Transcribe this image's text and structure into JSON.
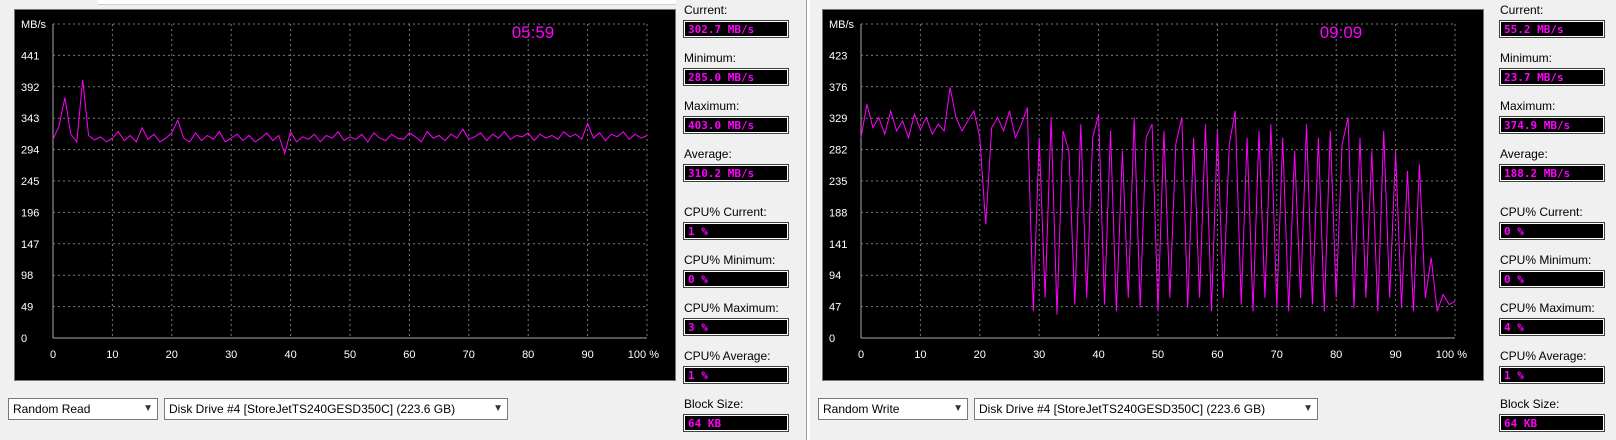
{
  "panels": [
    {
      "chart": {
        "y_unit": "MB/s",
        "y_ticks": [
          "441",
          "392",
          "343",
          "294",
          "245",
          "196",
          "147",
          "98",
          "49",
          "0"
        ],
        "x_ticks": [
          "0",
          "10",
          "20",
          "30",
          "40",
          "50",
          "60",
          "70",
          "80",
          "90",
          "100 %"
        ],
        "timer": "05:59"
      },
      "stats": [
        {
          "label": "Current:",
          "value": "302.7 MB/s"
        },
        {
          "label": "Minimum:",
          "value": "285.0 MB/s"
        },
        {
          "label": "Maximum:",
          "value": "403.0 MB/s"
        },
        {
          "label": "Average:",
          "value": "310.2 MB/s"
        },
        {
          "label": "CPU% Current:",
          "value": "1 %"
        },
        {
          "label": "CPU% Minimum:",
          "value": "0 %"
        },
        {
          "label": "CPU% Maximum:",
          "value": "3 %"
        },
        {
          "label": "CPU% Average:",
          "value": "1 %"
        },
        {
          "label": "Block Size:",
          "value": "64 KB"
        }
      ],
      "test_select": "Random Read",
      "drive_select": "Disk Drive #4  [StoreJetTS240GESD350C]  (223.6 GB)"
    },
    {
      "chart": {
        "y_unit": "MB/s",
        "y_ticks": [
          "423",
          "376",
          "329",
          "282",
          "235",
          "188",
          "141",
          "94",
          "47",
          "0"
        ],
        "x_ticks": [
          "0",
          "10",
          "20",
          "30",
          "40",
          "50",
          "60",
          "70",
          "80",
          "90",
          "100 %"
        ],
        "timer": "09:09"
      },
      "stats": [
        {
          "label": "Current:",
          "value": "55.2 MB/s"
        },
        {
          "label": "Minimum:",
          "value": "23.7 MB/s"
        },
        {
          "label": "Maximum:",
          "value": "374.9 MB/s"
        },
        {
          "label": "Average:",
          "value": "188.2 MB/s"
        },
        {
          "label": "CPU% Current:",
          "value": "0 %"
        },
        {
          "label": "CPU% Minimum:",
          "value": "0 %"
        },
        {
          "label": "CPU% Maximum:",
          "value": "4 %"
        },
        {
          "label": "CPU% Average:",
          "value": "1 %"
        },
        {
          "label": "Block Size:",
          "value": "64 KB"
        }
      ],
      "test_select": "Random Write",
      "drive_select": "Disk Drive #4  [StoreJetTS240GESD350C]  (223.6 GB)"
    }
  ],
  "colors": {
    "trace": "#ff00ff",
    "grid": "#7a7a7a",
    "axis_text": "#ffffff",
    "timer": "#ff00ff"
  },
  "chart_data": [
    {
      "type": "line",
      "xlabel": "",
      "ylabel": "MB/s",
      "xlim": [
        0,
        100
      ],
      "ylim": [
        0,
        490
      ],
      "series": [
        {
          "x": [
            0,
            1,
            2,
            3,
            4,
            5,
            6,
            7,
            8,
            9,
            10,
            11,
            12,
            13,
            14,
            15,
            16,
            17,
            18,
            19,
            20,
            21,
            22,
            23,
            24,
            25,
            26,
            27,
            28,
            29,
            30,
            31,
            32,
            33,
            34,
            35,
            36,
            37,
            38,
            39,
            40,
            41,
            42,
            43,
            44,
            45,
            46,
            47,
            48,
            49,
            50,
            51,
            52,
            53,
            54,
            55,
            56,
            57,
            58,
            59,
            60,
            61,
            62,
            63,
            64,
            65,
            66,
            67,
            68,
            69,
            70,
            71,
            72,
            73,
            74,
            75,
            76,
            77,
            78,
            79,
            80,
            81,
            82,
            83,
            84,
            85,
            86,
            87,
            88,
            89,
            90,
            91,
            92,
            93,
            94,
            95,
            96,
            97,
            98,
            99,
            100
          ],
          "y": [
            310,
            330,
            375,
            318,
            306,
            403,
            316,
            309,
            314,
            306,
            312,
            322,
            308,
            316,
            306,
            328,
            310,
            318,
            306,
            312,
            320,
            340,
            312,
            306,
            320,
            308,
            316,
            310,
            322,
            306,
            312,
            318,
            308,
            316,
            306,
            312,
            320,
            308,
            316,
            288,
            322,
            306,
            314,
            310,
            318,
            306,
            316,
            312,
            322,
            308,
            314,
            310,
            318,
            306,
            320,
            312,
            308,
            318,
            312,
            310,
            320,
            314,
            306,
            322,
            312,
            316,
            308,
            318,
            312,
            326,
            310,
            314,
            320,
            308,
            318,
            312,
            322,
            310,
            316,
            314,
            320,
            308,
            318,
            312,
            316,
            310,
            322,
            314,
            318,
            310,
            335,
            312,
            320,
            308,
            318,
            314,
            322,
            310,
            318,
            312,
            316
          ]
        }
      ]
    },
    {
      "type": "line",
      "xlabel": "",
      "ylabel": "MB/s",
      "xlim": [
        0,
        100
      ],
      "ylim": [
        0,
        470
      ],
      "series": [
        {
          "x": [
            0,
            1,
            2,
            3,
            4,
            5,
            6,
            7,
            8,
            9,
            10,
            11,
            12,
            13,
            14,
            15,
            16,
            17,
            18,
            19,
            20,
            21,
            22,
            23,
            24,
            25,
            26,
            27,
            28,
            29,
            30,
            31,
            32,
            33,
            34,
            35,
            36,
            37,
            38,
            39,
            40,
            41,
            42,
            43,
            44,
            45,
            46,
            47,
            48,
            49,
            50,
            51,
            52,
            53,
            54,
            55,
            56,
            57,
            58,
            59,
            60,
            61,
            62,
            63,
            64,
            65,
            66,
            67,
            68,
            69,
            70,
            71,
            72,
            73,
            74,
            75,
            76,
            77,
            78,
            79,
            80,
            81,
            82,
            83,
            84,
            85,
            86,
            87,
            88,
            89,
            90,
            91,
            92,
            93,
            94,
            95,
            96,
            97,
            98,
            99,
            100
          ],
          "y": [
            300,
            350,
            315,
            330,
            305,
            340,
            310,
            325,
            300,
            335,
            312,
            330,
            305,
            320,
            310,
            375,
            330,
            310,
            325,
            340,
            300,
            170,
            315,
            330,
            310,
            340,
            300,
            320,
            345,
            40,
            300,
            60,
            330,
            35,
            310,
            280,
            50,
            320,
            60,
            300,
            335,
            50,
            310,
            40,
            280,
            60,
            330,
            45,
            300,
            320,
            40,
            310,
            60,
            290,
            330,
            45,
            300,
            60,
            320,
            40,
            310,
            60,
            290,
            340,
            50,
            300,
            40,
            310,
            60,
            320,
            45,
            300,
            40,
            280,
            60,
            320,
            50,
            300,
            40,
            310,
            60,
            290,
            330,
            45,
            300,
            60,
            280,
            40,
            310,
            60,
            280,
            45,
            250,
            40,
            260,
            60,
            120,
            40,
            65,
            50,
            55
          ]
        }
      ]
    }
  ]
}
